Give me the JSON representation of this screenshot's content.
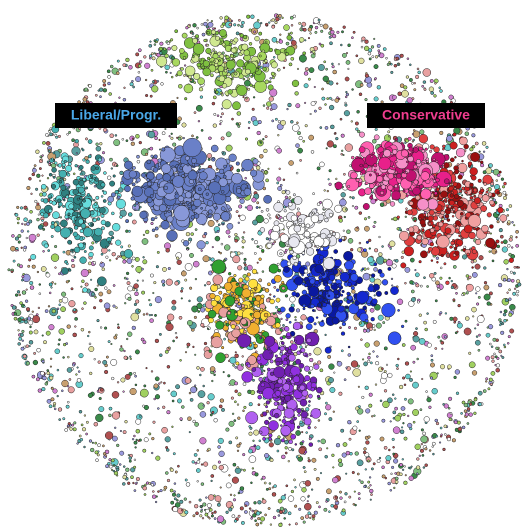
{
  "labels": {
    "left": "Liberal/Progr.",
    "right": "Conservative"
  }
}
